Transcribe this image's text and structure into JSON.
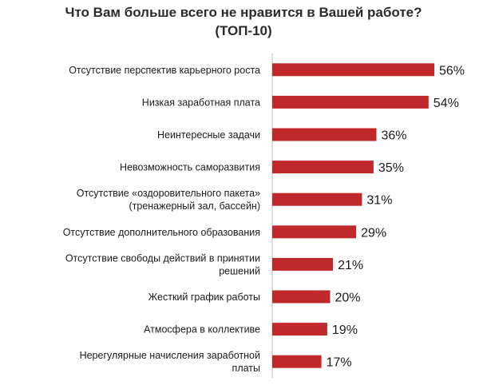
{
  "chart_data": {
    "type": "bar",
    "orientation": "horizontal",
    "title": "Что Вам больше всего не нравится в Вашей работе?",
    "subtitle": "(ТОП-10)",
    "categories": [
      "Отсутствие перспектив карьерного роста",
      "Низкая заработная плата",
      "Неинтересные задачи",
      "Невозможность саморазвития",
      "Отсутствие «оздоровительного пакета» (тренажерный зал, бассейн)",
      "Отсутствие дополнительного образования",
      "Отсутствие свободы действий в принятии решений",
      "Жесткий график работы",
      "Атмосфера в коллективе",
      "Нерегулярные начисления заработной платы"
    ],
    "category_lines": [
      [
        "Отсутствие перспектив карьерного роста"
      ],
      [
        "Низкая заработная плата"
      ],
      [
        "Неинтересные задачи"
      ],
      [
        "Невозможность саморазвития"
      ],
      [
        "Отсутствие «оздоровительного пакета»",
        "(тренажерный зал, бассейн)"
      ],
      [
        "Отсутствие дополнительного образования"
      ],
      [
        "Отсутствие свободы действий в принятии",
        "решений"
      ],
      [
        "Жесткий график работы"
      ],
      [
        "Атмосфера в коллективе"
      ],
      [
        "Нерегулярные начисления заработной",
        "платы"
      ]
    ],
    "values": [
      56,
      54,
      36,
      35,
      31,
      29,
      21,
      20,
      19,
      17
    ],
    "value_labels": [
      "56%",
      "54%",
      "36%",
      "35%",
      "31%",
      "29%",
      "21%",
      "20%",
      "19%",
      "17%"
    ],
    "unit": "%",
    "xlim": [
      0,
      56
    ],
    "grid": false,
    "legend": "none",
    "bar_color": "#c0292b",
    "axis_color": "#bfbfbf"
  }
}
